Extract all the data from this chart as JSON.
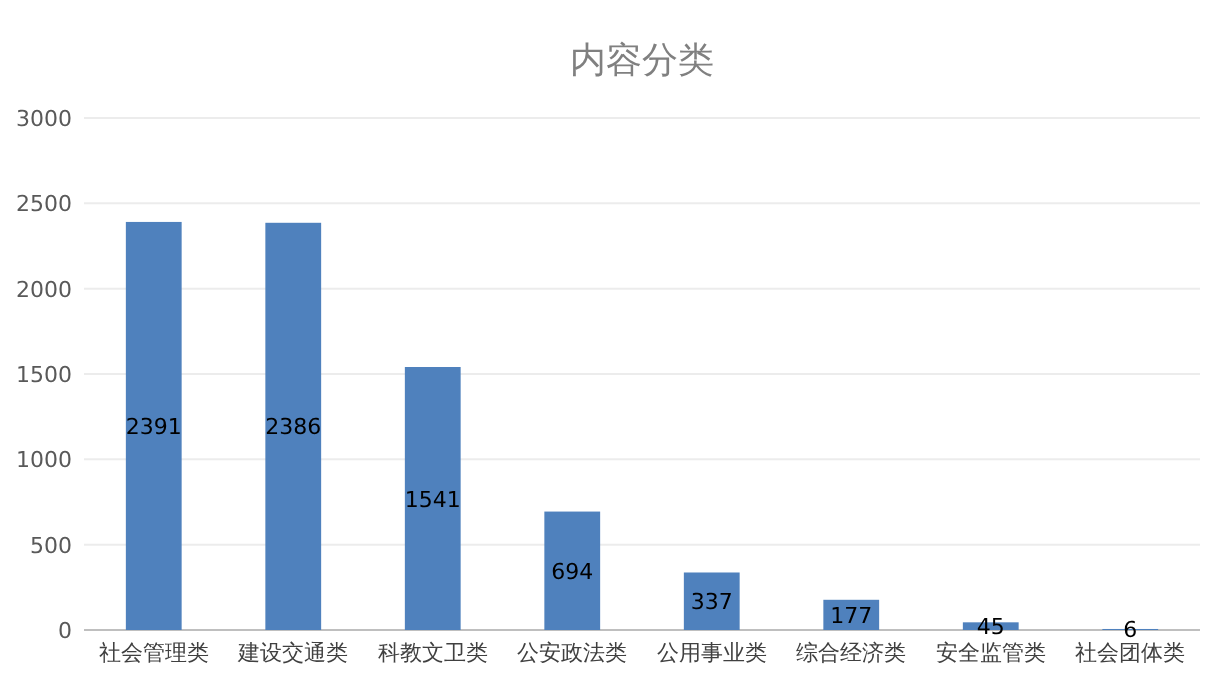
{
  "chart_data": {
    "type": "bar",
    "title": "内容分类",
    "categories": [
      "社会管理类",
      "建设交通类",
      "科教文卫类",
      "公安政法类",
      "公用事业类",
      "综合经济类",
      "安全监管类",
      "社会团体类"
    ],
    "values": [
      2391,
      2386,
      1541,
      694,
      337,
      177,
      45,
      6
    ],
    "color": "#4f81bd",
    "ylim": [
      0,
      3000
    ],
    "yticks": [
      0,
      500,
      1000,
      1500,
      2000,
      2500,
      3000
    ],
    "grid": "y",
    "data_labels": true
  }
}
